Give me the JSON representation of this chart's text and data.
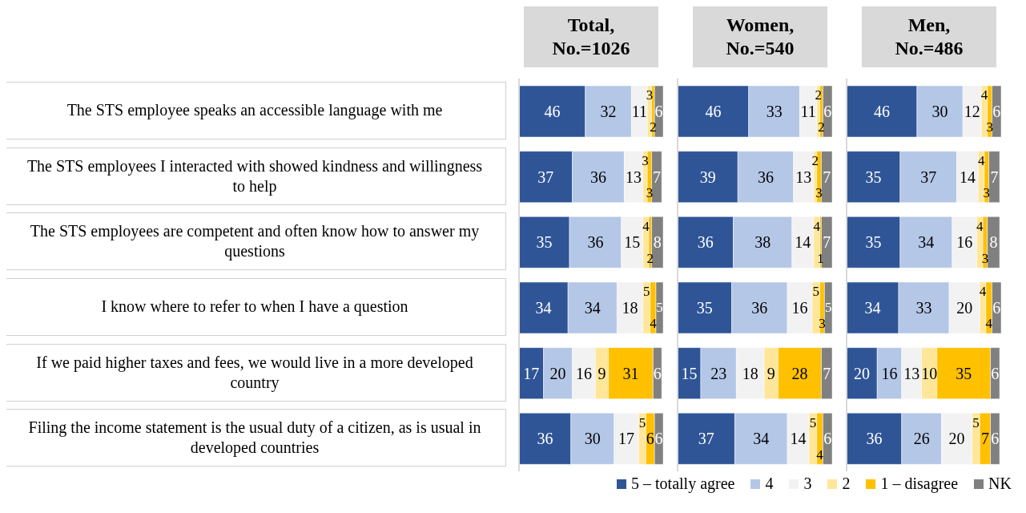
{
  "chart_data": [
    {
      "type": "bar",
      "orientation": "horizontal",
      "stacked": true,
      "title": "Total, No.=1026",
      "data_labels": true,
      "tick_labels": "y",
      "legend": "bottom",
      "categories": [
        "The STS employee speaks an accessible language with me",
        "The STS employees I interacted with showed kindness and willingness to help",
        "The STS employees are competent and often know how to answer my questions",
        "I know where to refer to when I have a question",
        "If we paid higher taxes and fees, we would live in a more developed country",
        "Filing the income statement is the usual duty of a citizen, as is usual in developed countries"
      ],
      "series": [
        {
          "name": "5 – totally agree",
          "color": "#2f5597",
          "values": [
            46,
            37,
            35,
            34,
            17,
            36
          ]
        },
        {
          "name": "4",
          "color": "#b4c7e7",
          "values": [
            32,
            36,
            36,
            34,
            20,
            30
          ]
        },
        {
          "name": "3",
          "color": "#f2f2f2",
          "values": [
            11,
            13,
            15,
            18,
            16,
            17
          ]
        },
        {
          "name": "2",
          "color": "#ffe699",
          "values": [
            3,
            3,
            4,
            5,
            9,
            5
          ]
        },
        {
          "name": "1 – disagree",
          "color": "#ffc000",
          "values": [
            2,
            3,
            2,
            4,
            31,
            6
          ]
        },
        {
          "name": "NK",
          "color": "#808080",
          "values": [
            6,
            7,
            8,
            5,
            6,
            6
          ]
        }
      ]
    },
    {
      "type": "bar",
      "orientation": "horizontal",
      "stacked": true,
      "title": "Women, No.=540",
      "data_labels": true,
      "tick_labels": false,
      "series": [
        {
          "color": "#2f5597",
          "values": [
            46,
            39,
            36,
            35,
            15,
            37
          ]
        },
        {
          "color": "#b4c7e7",
          "values": [
            33,
            36,
            38,
            36,
            23,
            34
          ]
        },
        {
          "color": "#f2f2f2",
          "values": [
            11,
            13,
            14,
            16,
            18,
            14
          ]
        },
        {
          "color": "#ffe699",
          "values": [
            2,
            2,
            4,
            5,
            9,
            5
          ]
        },
        {
          "color": "#ffc000",
          "values": [
            2,
            3,
            1,
            3,
            28,
            4
          ]
        },
        {
          "color": "#808080",
          "values": [
            6,
            7,
            7,
            5,
            7,
            6
          ]
        }
      ]
    },
    {
      "type": "bar",
      "orientation": "horizontal",
      "stacked": true,
      "title": "Men, No.=486",
      "data_labels": true,
      "tick_labels": false,
      "series": [
        {
          "color": "#2f5597",
          "values": [
            46,
            35,
            35,
            34,
            20,
            36
          ]
        },
        {
          "color": "#b4c7e7",
          "values": [
            30,
            37,
            34,
            33,
            16,
            26
          ]
        },
        {
          "color": "#f2f2f2",
          "values": [
            12,
            14,
            16,
            20,
            13,
            20
          ]
        },
        {
          "color": "#ffe699",
          "values": [
            4,
            4,
            4,
            4,
            10,
            5
          ]
        },
        {
          "color": "#ffc000",
          "values": [
            3,
            3,
            3,
            4,
            35,
            7
          ]
        },
        {
          "color": "#808080",
          "values": [
            6,
            7,
            8,
            6,
            6,
            6
          ]
        }
      ]
    }
  ]
}
